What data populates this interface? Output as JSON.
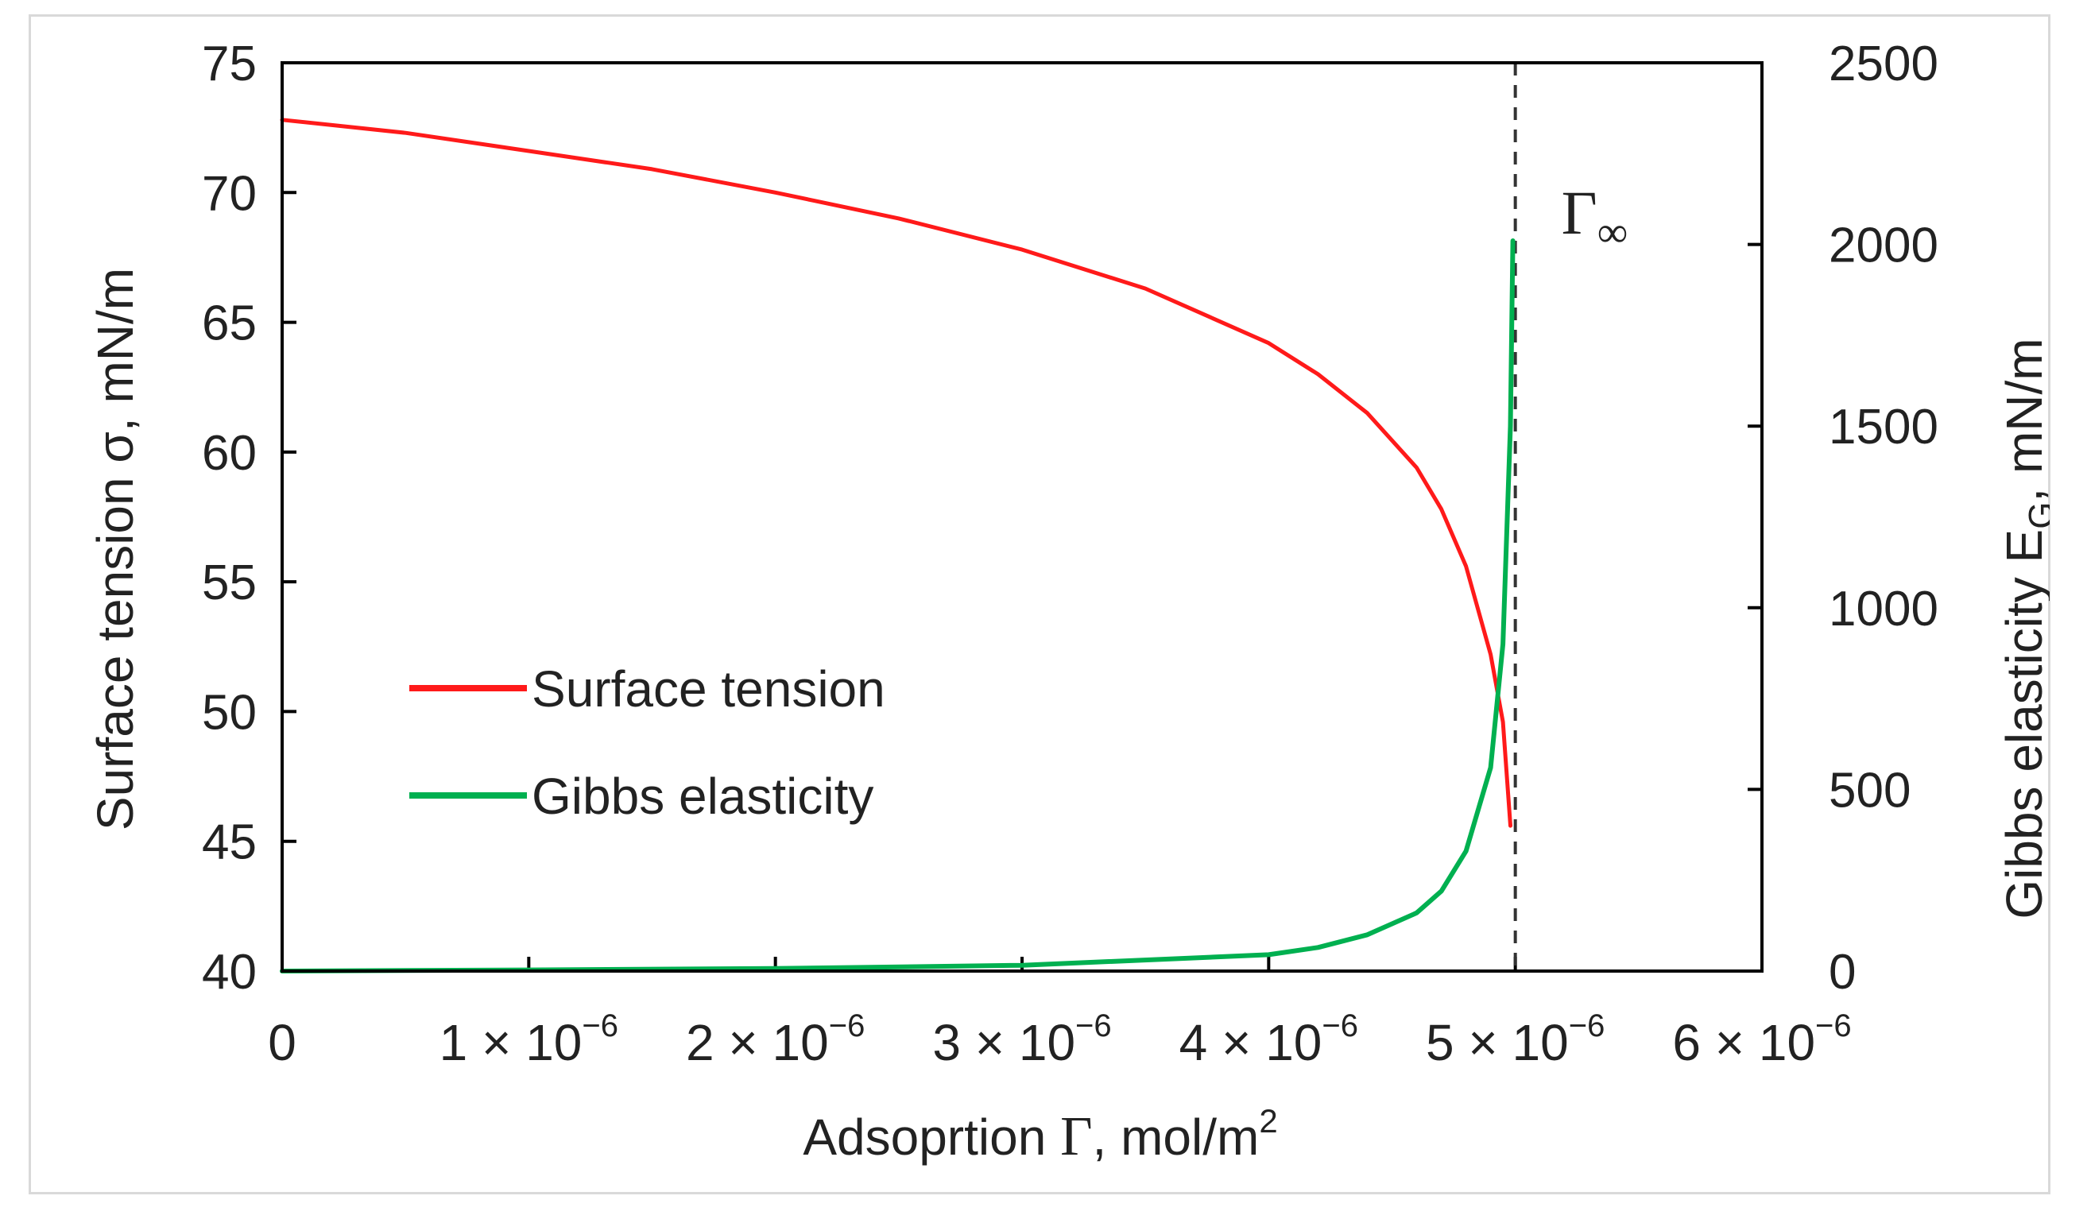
{
  "colors": {
    "surface_tension": "#ff1a1a",
    "gibbs_elasticity": "#00b050",
    "axis": "#000000",
    "gamma_line": "#333333"
  },
  "chart_data": {
    "type": "line",
    "title": "",
    "xlabel": {
      "prefix": "Adsoprtion ",
      "symbol": "Γ",
      "suffix": ", mol/m",
      "superscript": "2"
    },
    "ylabel_left": "Surface tension σ, mN/m",
    "ylabel_right": {
      "prefix": "Gibbs elasticity E",
      "subscript": "G",
      "suffix": ", mN/m"
    },
    "xlim": [
      0,
      6e-06
    ],
    "ylim_left": [
      40,
      75
    ],
    "ylim_right": [
      0,
      2500
    ],
    "x_ticks": [
      {
        "value": 0,
        "label": "0"
      },
      {
        "value": 1e-06,
        "label": "1 × 10",
        "exp": "−6"
      },
      {
        "value": 2e-06,
        "label": "2 × 10",
        "exp": "−6"
      },
      {
        "value": 3e-06,
        "label": "3 × 10",
        "exp": "−6"
      },
      {
        "value": 4e-06,
        "label": "4 × 10",
        "exp": "−6"
      },
      {
        "value": 5e-06,
        "label": "5 × 10",
        "exp": "−6"
      },
      {
        "value": 6e-06,
        "label": "6 × 10",
        "exp": "−6"
      }
    ],
    "y_ticks_left": [
      {
        "value": 40,
        "label": "40"
      },
      {
        "value": 45,
        "label": "45"
      },
      {
        "value": 50,
        "label": "50"
      },
      {
        "value": 55,
        "label": "55"
      },
      {
        "value": 60,
        "label": "60"
      },
      {
        "value": 65,
        "label": "65"
      },
      {
        "value": 70,
        "label": "70"
      },
      {
        "value": 75,
        "label": "75"
      }
    ],
    "y_ticks_right": [
      {
        "value": 0,
        "label": "0"
      },
      {
        "value": 500,
        "label": "500"
      },
      {
        "value": 1000,
        "label": "1000"
      },
      {
        "value": 1500,
        "label": "1500"
      },
      {
        "value": 2000,
        "label": "2000"
      },
      {
        "value": 2500,
        "label": "2500"
      }
    ],
    "gamma_infinity": {
      "x": 5e-06,
      "label_symbol": "Γ",
      "label_subscript": "∞"
    },
    "legend": {
      "placement": "center-left",
      "entries": [
        {
          "name": "Surface tension",
          "series": "surface_tension"
        },
        {
          "name": "Gibbs elasticity",
          "series": "gibbs_elasticity"
        }
      ]
    },
    "series": [
      {
        "name": "Surface tension",
        "key": "surface_tension",
        "axis": "left",
        "x": [
          0,
          5e-07,
          1e-06,
          1.5e-06,
          2e-06,
          2.5e-06,
          3e-06,
          3.5e-06,
          4e-06,
          4.2e-06,
          4.4e-06,
          4.6e-06,
          4.7e-06,
          4.8e-06,
          4.9e-06,
          4.95e-06,
          4.98e-06
        ],
        "y": [
          72.8,
          72.3,
          71.6,
          70.9,
          70.0,
          69.0,
          67.8,
          66.3,
          64.2,
          63.0,
          61.5,
          59.4,
          57.8,
          55.6,
          52.2,
          49.6,
          45.6
        ]
      },
      {
        "name": "Gibbs elasticity",
        "key": "gibbs_elasticity",
        "axis": "right",
        "x": [
          0,
          1e-06,
          2e-06,
          3e-06,
          4e-06,
          4.2e-06,
          4.4e-06,
          4.6e-06,
          4.7e-06,
          4.8e-06,
          4.9e-06,
          4.95e-06,
          4.98e-06,
          4.99e-06
        ],
        "y": [
          0,
          3,
          7,
          16,
          45,
          65,
          100,
          160,
          220,
          330,
          560,
          900,
          1500,
          2010
        ]
      }
    ]
  }
}
